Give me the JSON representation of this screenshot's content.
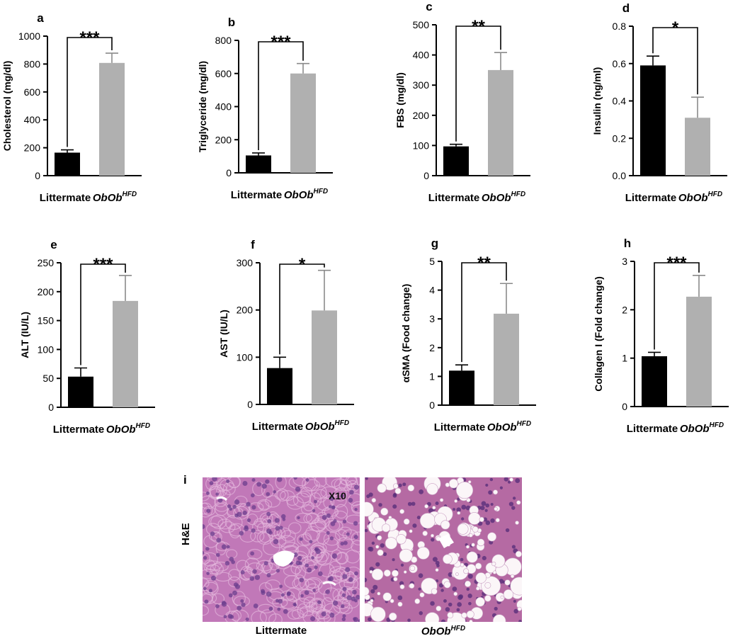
{
  "chart_data": [
    {
      "letter": "a",
      "type": "bar",
      "categories": [
        "Littermate",
        "ObOb"
      ],
      "category_superscripts": [
        "",
        "HFD"
      ],
      "values": [
        165,
        808
      ],
      "errors": [
        20,
        70
      ],
      "ylabel": "Cholesterol (mg/dl)",
      "ylim": [
        0,
        1000
      ],
      "yticks": [
        "0",
        "200",
        "400",
        "600",
        "800",
        "1000"
      ],
      "significance": "***",
      "colors": [
        "#000000",
        "#b0b0b0"
      ]
    },
    {
      "letter": "b",
      "type": "bar",
      "categories": [
        "Littermate",
        "ObOb"
      ],
      "category_superscripts": [
        "",
        "HFD"
      ],
      "values": [
        105,
        600
      ],
      "errors": [
        15,
        60
      ],
      "ylabel": "Triglyceride (mg/dl)",
      "ylim": [
        0,
        800
      ],
      "yticks": [
        "0",
        "200",
        "400",
        "600",
        "800"
      ],
      "significance": "***",
      "colors": [
        "#000000",
        "#b0b0b0"
      ]
    },
    {
      "letter": "c",
      "type": "bar",
      "categories": [
        "Littermate",
        "ObOb"
      ],
      "category_superscripts": [
        "",
        "HFD"
      ],
      "values": [
        97,
        350
      ],
      "errors": [
        7,
        58
      ],
      "ylabel": "FBS (mg/dl)",
      "ylim": [
        0,
        500
      ],
      "yticks": [
        "0",
        "100",
        "200",
        "300",
        "400",
        "500"
      ],
      "significance": "**",
      "colors": [
        "#000000",
        "#b0b0b0"
      ]
    },
    {
      "letter": "d",
      "type": "bar",
      "categories": [
        "Littermate",
        "ObOb"
      ],
      "category_superscripts": [
        "",
        "HFD"
      ],
      "values": [
        0.59,
        0.31
      ],
      "errors": [
        0.05,
        0.11
      ],
      "ylabel": "Insulin (ng/ml)",
      "ylim": [
        0,
        0.8
      ],
      "yticks": [
        "0.0",
        "0.2",
        "0.4",
        "0.6",
        "0.8"
      ],
      "significance": "*",
      "colors": [
        "#000000",
        "#b0b0b0"
      ]
    },
    {
      "letter": "e",
      "type": "bar",
      "categories": [
        "Littermate",
        "ObOb"
      ],
      "category_superscripts": [
        "",
        "HFD"
      ],
      "values": [
        53,
        184
      ],
      "errors": [
        15,
        44
      ],
      "ylabel": "ALT (IU/L)",
      "ylim": [
        0,
        250
      ],
      "yticks": [
        "0",
        "50",
        "100",
        "150",
        "200",
        "250"
      ],
      "significance": "***",
      "colors": [
        "#000000",
        "#b0b0b0"
      ]
    },
    {
      "letter": "f",
      "type": "bar",
      "categories": [
        "Littermate",
        "ObOb"
      ],
      "category_superscripts": [
        "",
        "HFD"
      ],
      "values": [
        77,
        199
      ],
      "errors": [
        23,
        85
      ],
      "ylabel": "AST (IU/L)",
      "ylim": [
        0,
        300
      ],
      "yticks": [
        "0",
        "100",
        "200",
        "300"
      ],
      "significance": "*",
      "colors": [
        "#000000",
        "#b0b0b0"
      ]
    },
    {
      "letter": "g",
      "type": "bar",
      "categories": [
        "Littermate",
        "ObOb"
      ],
      "category_superscripts": [
        "",
        "HFD"
      ],
      "values": [
        1.2,
        3.18
      ],
      "errors": [
        0.2,
        1.05
      ],
      "ylabel": "αSMA (Food change)",
      "ylim": [
        0,
        5
      ],
      "yticks": [
        "0",
        "1",
        "2",
        "3",
        "4",
        "5"
      ],
      "significance": "**",
      "colors": [
        "#000000",
        "#b0b0b0"
      ]
    },
    {
      "letter": "h",
      "type": "bar",
      "categories": [
        "Littermate",
        "ObOb"
      ],
      "category_superscripts": [
        "",
        "HFD"
      ],
      "values": [
        1.04,
        2.27
      ],
      "errors": [
        0.08,
        0.44
      ],
      "ylabel": "Collagen I (Fold change)",
      "ylim": [
        0,
        3
      ],
      "yticks": [
        "0",
        "1",
        "2",
        "3"
      ],
      "significance": "***",
      "colors": [
        "#000000",
        "#b0b0b0"
      ]
    }
  ],
  "histology": {
    "letter": "i",
    "stain": "H&E",
    "magnification": "X10",
    "left_caption": "Littermate",
    "right_caption": "ObOb",
    "right_caption_sup": "HFD"
  }
}
